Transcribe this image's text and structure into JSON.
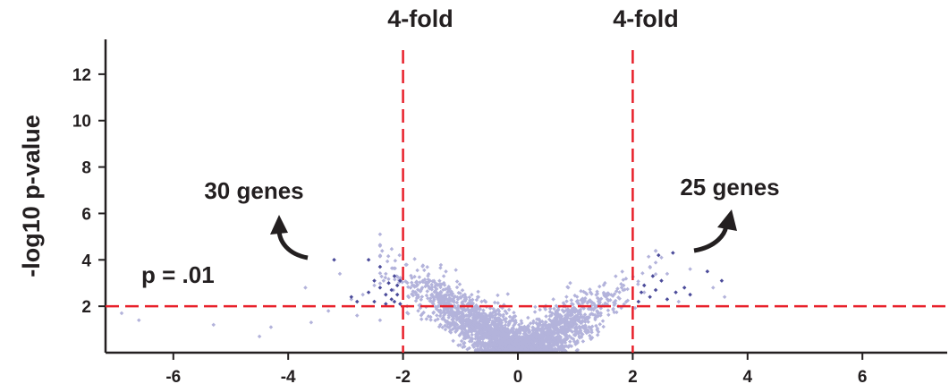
{
  "chart_data": {
    "type": "scatter",
    "title": "",
    "xlabel": "",
    "ylabel": "-log10 p-value",
    "xlim": [
      -7.5,
      7.5
    ],
    "ylim": [
      0,
      13.5
    ],
    "x_ticks": [
      "-6",
      "-4",
      "-2",
      "0",
      "2",
      "4",
      "6"
    ],
    "x_tick_values": [
      -6,
      -4,
      -2,
      0,
      2,
      4,
      6
    ],
    "y_ticks": [
      "2",
      "4",
      "6",
      "8",
      "10",
      "12"
    ],
    "y_tick_values": [
      2,
      4,
      6,
      8,
      10,
      12
    ],
    "grid": false,
    "colors": {
      "points": "#b3b3db",
      "significant_points": "#4b4b9a",
      "threshold_lines": "#e8202a",
      "text": "#231f20",
      "axis": "#231f20"
    },
    "thresholds": {
      "vertical": [
        {
          "x": -2,
          "label": "4-fold"
        },
        {
          "x": 2,
          "label": "4-fold"
        }
      ],
      "horizontal": {
        "y": 2,
        "label": "p = .01"
      }
    },
    "annotations": [
      {
        "text": "30 genes",
        "arrow_icon": "curved-arrow-icon"
      },
      {
        "text": "25 genes",
        "arrow_icon": "curved-arrow-icon"
      }
    ],
    "series": [
      {
        "values_description_note": "",
        "outliers": [
          [
            -6.9,
            1.7
          ],
          [
            -6.6,
            1.4
          ],
          [
            -5.3,
            1.2
          ],
          [
            -4.5,
            0.7
          ],
          [
            -4.3,
            1.1
          ],
          [
            -3.7,
            2.8
          ],
          [
            -3.6,
            1.3
          ],
          [
            -3.3,
            1.8
          ],
          [
            -3.1,
            3.4
          ],
          [
            -2.9,
            2.3
          ],
          [
            -2.8,
            1.6
          ],
          [
            -2.7,
            2.5
          ],
          [
            -2.5,
            2.9
          ],
          [
            -2.4,
            1.4
          ],
          [
            -2.3,
            3.4
          ],
          [
            2.2,
            2.6
          ],
          [
            2.3,
            3.7
          ],
          [
            2.5,
            4.1
          ],
          [
            2.6,
            3.4
          ],
          [
            2.8,
            2.2
          ],
          [
            3.0,
            3.6
          ],
          [
            3.4,
            2.8
          ],
          [
            3.6,
            2.4
          ]
        ],
        "significant": [
          [
            -3.2,
            4.0
          ],
          [
            -2.9,
            2.4
          ],
          [
            -2.8,
            2.2
          ],
          [
            -2.6,
            2.6
          ],
          [
            -2.5,
            3.1
          ],
          [
            -2.5,
            2.2
          ],
          [
            -2.4,
            2.8
          ],
          [
            -2.4,
            3.7
          ],
          [
            -2.3,
            2.5
          ],
          [
            -2.3,
            2.1
          ],
          [
            -2.25,
            3.0
          ],
          [
            -2.2,
            2.3
          ],
          [
            -2.2,
            2.7
          ],
          [
            -2.15,
            3.3
          ],
          [
            -2.15,
            2.2
          ],
          [
            -2.1,
            2.9
          ],
          [
            -2.1,
            2.5
          ],
          [
            -2.05,
            2.1
          ],
          [
            -2.05,
            3.1
          ],
          [
            -2.6,
            4.0
          ],
          [
            2.1,
            2.2
          ],
          [
            2.15,
            2.6
          ],
          [
            2.2,
            2.9
          ],
          [
            2.3,
            2.4
          ],
          [
            2.35,
            3.3
          ],
          [
            2.4,
            2.7
          ],
          [
            2.5,
            3.1
          ],
          [
            2.6,
            2.3
          ],
          [
            2.7,
            4.3
          ],
          [
            2.75,
            2.6
          ],
          [
            2.9,
            2.8
          ],
          [
            3.0,
            2.5
          ],
          [
            3.3,
            3.5
          ],
          [
            3.55,
            3.1
          ],
          [
            2.45,
            4.2
          ]
        ]
      }
    ]
  }
}
